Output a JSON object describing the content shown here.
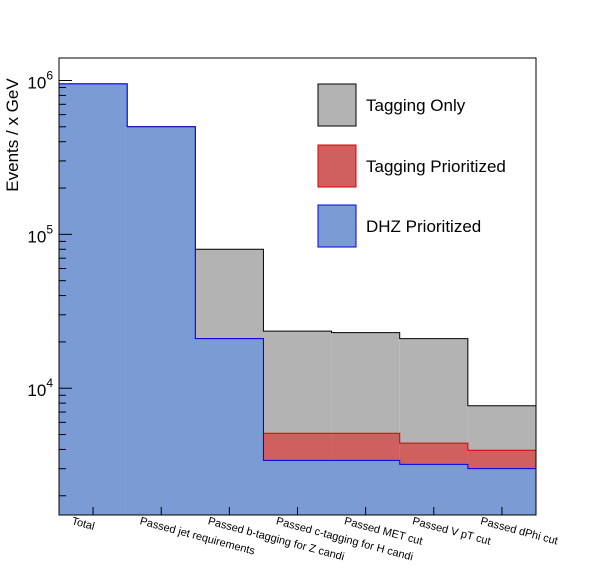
{
  "chart_data": {
    "type": "bar",
    "ylabel": "Events / x GeV",
    "yscale": "log",
    "ylim": [
      1500,
      1400000
    ],
    "yticks": [
      {
        "value": 10000,
        "base": "10",
        "exp": "4"
      },
      {
        "value": 100000,
        "base": "10",
        "exp": "5"
      },
      {
        "value": 1000000,
        "base": "10",
        "exp": "6"
      }
    ],
    "categories": [
      "Total",
      "Passed jet requirements",
      "Passed b-tagging for Z candi",
      "Passed c-tagging for H candi",
      "Passed MET cut",
      "Passed V pT cut",
      "Passed dPhi cut"
    ],
    "legend_position": "top-right",
    "series": [
      {
        "name": "Tagging Only",
        "color": "#b3b3b3",
        "edge": "#000000",
        "values": [
          950000,
          500000,
          80000,
          23500,
          23000,
          21000,
          7700
        ]
      },
      {
        "name": "Tagging Prioritized",
        "color": "#d06060",
        "edge": "#dd0000",
        "values": [
          950000,
          500000,
          21000,
          5100,
          5100,
          4400,
          3950
        ]
      },
      {
        "name": "DHZ Prioritized",
        "color": "#7b9bd4",
        "edge": "#0000ee",
        "values": [
          950000,
          500000,
          21000,
          3400,
          3400,
          3200,
          3000
        ]
      }
    ]
  }
}
